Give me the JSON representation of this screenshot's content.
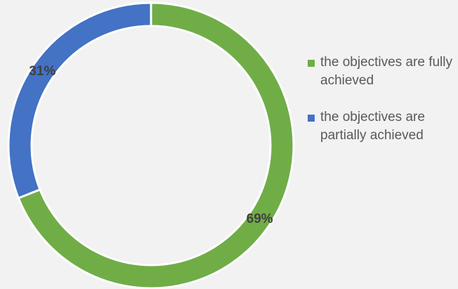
{
  "chart_data": {
    "type": "donut",
    "categories": [
      "the objectives are fully achieved",
      "the objectives are partially achieved"
    ],
    "values": [
      69,
      31
    ],
    "value_labels": [
      "69%",
      "31%"
    ],
    "colors": [
      "#70ad47",
      "#4472c4"
    ],
    "legend": "right"
  }
}
